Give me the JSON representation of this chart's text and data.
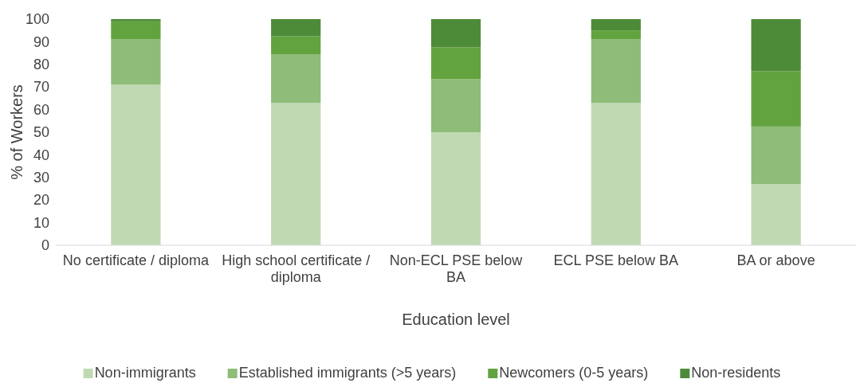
{
  "chart_data": {
    "type": "bar",
    "stacked": true,
    "xlabel": "Education level",
    "ylabel": "% of Workers",
    "categories": [
      "No certificate / diploma",
      "High school certificate / diploma",
      "Non-ECL PSE below BA",
      "ECL PSE below BA",
      "BA or above"
    ],
    "ylim": [
      0,
      100
    ],
    "yticks": [
      0,
      10,
      20,
      30,
      40,
      50,
      60,
      70,
      80,
      90,
      100
    ],
    "grid": false,
    "legend": "bottom",
    "series": [
      {
        "name": "Non-immigrants",
        "color": "#c0d9b3",
        "values": [
          71,
          63,
          50,
          63,
          27
        ]
      },
      {
        "name": "Established immigrants (>5 years)",
        "color": "#8fbc78",
        "values": [
          20,
          21.5,
          23.5,
          28,
          25.5
        ]
      },
      {
        "name": "Newcomers (0-5 years)",
        "color": "#63a33f",
        "values": [
          8,
          8,
          14,
          4,
          24.5
        ]
      },
      {
        "name": "Non-residents",
        "color": "#4e8b38",
        "values": [
          1,
          7.5,
          12.5,
          5,
          23
        ]
      }
    ]
  }
}
